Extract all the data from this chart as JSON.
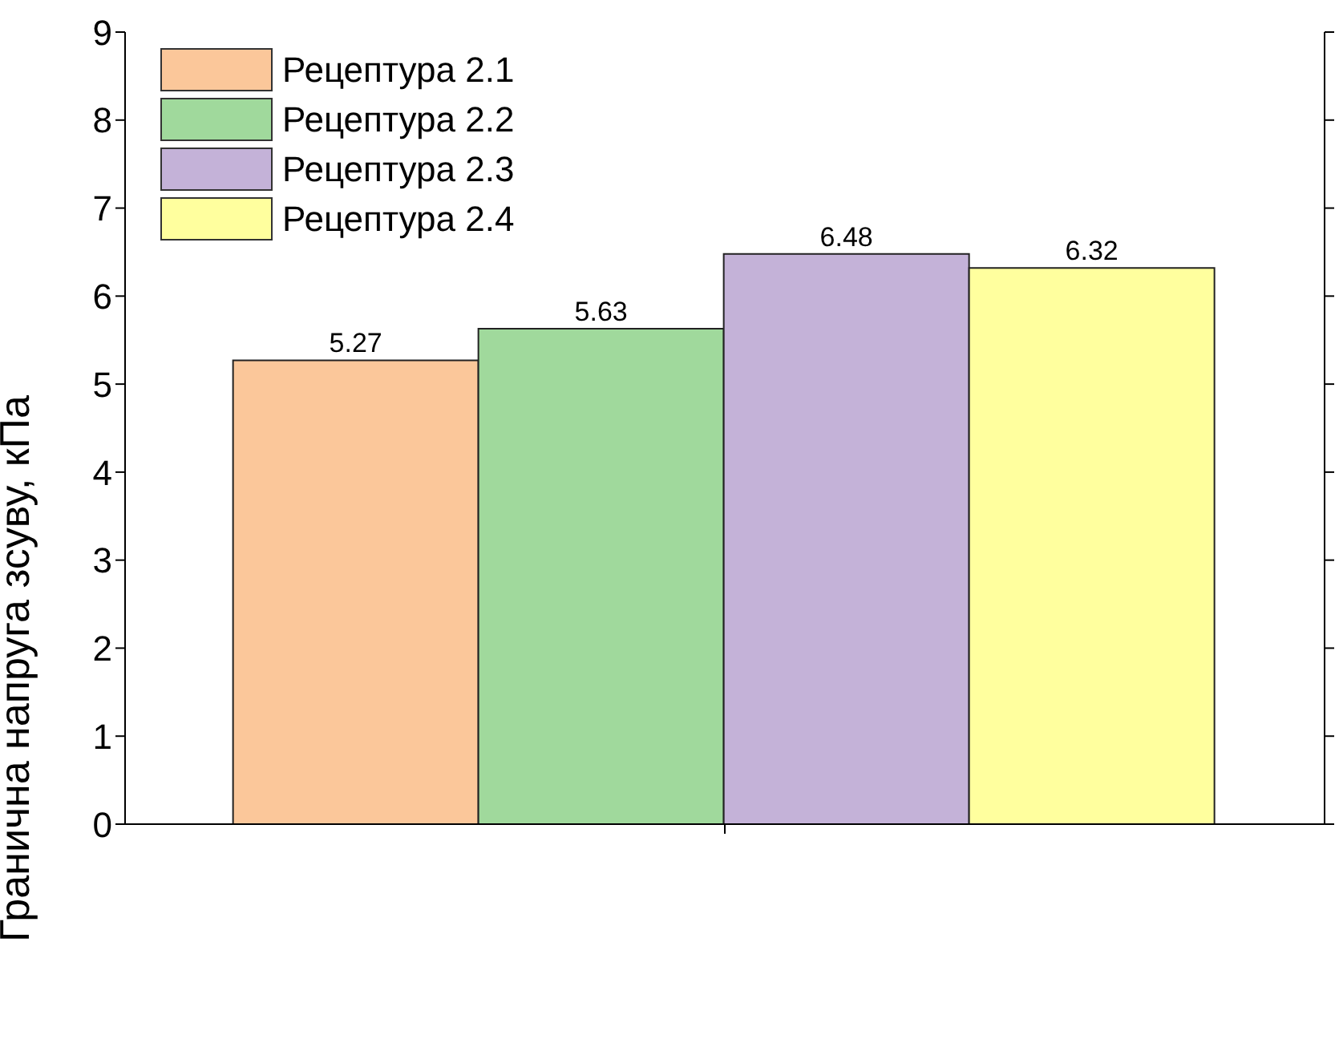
{
  "chart_data": {
    "type": "bar",
    "ylabel": "Гранична напруга зсуву, кПа",
    "categories": [
      null
    ],
    "series": [
      {
        "name": "Рецептура 2.1",
        "color": "#fbc79a",
        "values": [
          5.27
        ]
      },
      {
        "name": "Рецептура 2.2",
        "color": "#a0d99c",
        "values": [
          5.63
        ]
      },
      {
        "name": "Рецептура 2.3",
        "color": "#c4b2d8",
        "values": [
          6.48
        ]
      },
      {
        "name": "Рецептура 2.4",
        "color": "#ffff9e",
        "values": [
          6.32
        ]
      }
    ],
    "ylim": [
      0,
      9
    ],
    "yticks": [
      0,
      1,
      2,
      3,
      4,
      5,
      6,
      7,
      8,
      9
    ],
    "data_labels": true,
    "legend": "top left",
    "grid": false
  }
}
